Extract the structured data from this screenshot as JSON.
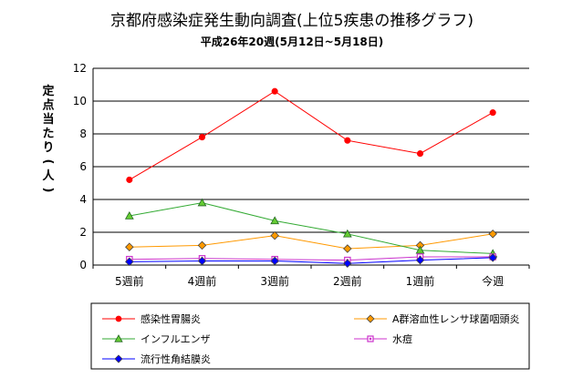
{
  "chart_data": {
    "type": "line",
    "title": "京都府感染症発生動向調査(上位5疾患の推移グラフ)",
    "subtitle": "平成26年20週(5月12日~5月18日)",
    "ylabel": "定点当たり(人)",
    "xlabel": "",
    "categories": [
      "5週前",
      "4週前",
      "3週前",
      "2週前",
      "1週前",
      "今週"
    ],
    "ylim": [
      0,
      12
    ],
    "yticks": [
      0,
      2,
      4,
      6,
      8,
      10,
      12
    ],
    "grid": true,
    "legend_position": "bottom",
    "series": [
      {
        "name": "感染性胃腸炎",
        "color": "#ff0000",
        "marker": "circle",
        "marker_fill": "#ff0000",
        "values": [
          5.2,
          7.8,
          10.6,
          7.6,
          6.8,
          9.3
        ]
      },
      {
        "name": "A群溶血性レンサ球菌咽頭炎",
        "color": "#ff9900",
        "marker": "diamond",
        "marker_fill": "#ff9900",
        "values": [
          1.1,
          1.2,
          1.8,
          1.0,
          1.2,
          1.9
        ]
      },
      {
        "name": "インフルエンザ",
        "color": "#33aa33",
        "marker": "triangle",
        "marker_fill": "#66cc33",
        "values": [
          3.0,
          3.8,
          2.7,
          1.9,
          0.9,
          0.7
        ]
      },
      {
        "name": "水痘",
        "color": "#cc33cc",
        "marker": "square",
        "marker_fill": "#cc33cc",
        "values": [
          0.35,
          0.4,
          0.35,
          0.3,
          0.5,
          0.5
        ]
      },
      {
        "name": "流行性角結膜炎",
        "color": "#0000ff",
        "marker": "diamond",
        "marker_fill": "#0000ff",
        "values": [
          0.2,
          0.25,
          0.25,
          0.1,
          0.3,
          0.45
        ]
      }
    ]
  }
}
